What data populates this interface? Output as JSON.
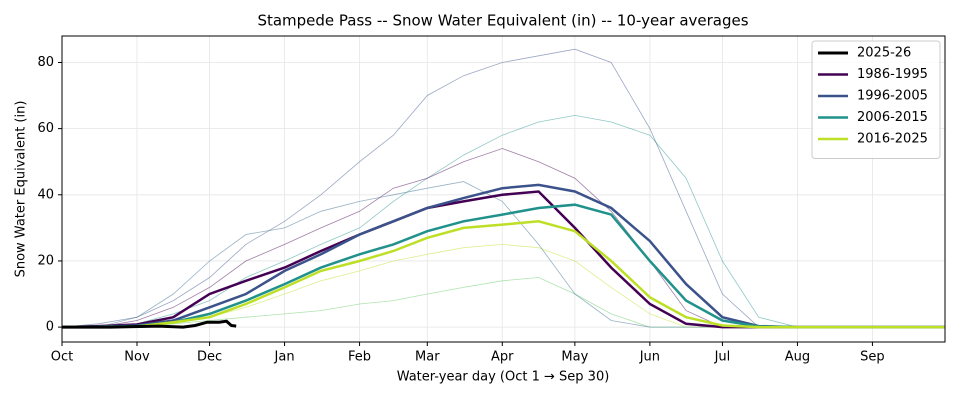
{
  "chart_data": {
    "type": "line",
    "title": "Stampede Pass -- Snow Water Equivalent (in) -- 10-year averages",
    "x_label": "Water-year day (Oct 1 → Sep 30)",
    "y_label": "Snow Water Equivalent (in)",
    "xlim": [
      0,
      365
    ],
    "ylim": [
      -4.5,
      88
    ],
    "xticks": [
      {
        "value": 0,
        "label": "Oct"
      },
      {
        "value": 31,
        "label": "Nov"
      },
      {
        "value": 61,
        "label": "Dec"
      },
      {
        "value": 92,
        "label": "Jan"
      },
      {
        "value": 123,
        "label": "Feb"
      },
      {
        "value": 151,
        "label": "Mar"
      },
      {
        "value": 182,
        "label": "Apr"
      },
      {
        "value": 212,
        "label": "May"
      },
      {
        "value": 243,
        "label": "Jun"
      },
      {
        "value": 273,
        "label": "Jul"
      },
      {
        "value": 304,
        "label": "Aug"
      },
      {
        "value": 335,
        "label": "Sep"
      }
    ],
    "yticks": [
      0,
      20,
      40,
      60,
      80
    ],
    "grid": true,
    "legend": "upper right",
    "x": [
      0,
      15,
      31,
      46,
      61,
      76,
      92,
      107,
      123,
      137,
      151,
      166,
      182,
      197,
      212,
      227,
      243,
      258,
      273,
      288,
      304,
      335,
      365
    ],
    "individual_years": [
      {
        "color": "#3b528b",
        "values": [
          0,
          1,
          3,
          8,
          15,
          25,
          32,
          40,
          50,
          58,
          70,
          76,
          80,
          82,
          84,
          80,
          60,
          35,
          10,
          0,
          0,
          0,
          0
        ]
      },
      {
        "color": "#21918c",
        "values": [
          0,
          0,
          1,
          4,
          8,
          15,
          20,
          25,
          30,
          38,
          45,
          52,
          58,
          62,
          64,
          62,
          58,
          45,
          20,
          3,
          0,
          0,
          0
        ]
      },
      {
        "color": "#5ec962",
        "values": [
          0,
          0,
          0,
          1,
          2,
          3,
          4,
          5,
          7,
          8,
          10,
          12,
          14,
          15,
          10,
          4,
          0,
          0,
          0,
          0,
          0,
          0,
          0
        ]
      },
      {
        "color": "#440154",
        "values": [
          0,
          0,
          2,
          6,
          12,
          20,
          25,
          30,
          35,
          42,
          45,
          50,
          54,
          50,
          45,
          35,
          20,
          5,
          0,
          0,
          0,
          0,
          0
        ]
      },
      {
        "color": "#bddf26",
        "values": [
          0,
          0,
          0,
          1,
          3,
          6,
          10,
          14,
          17,
          20,
          22,
          24,
          25,
          24,
          20,
          12,
          4,
          0,
          0,
          0,
          0,
          0,
          0
        ]
      },
      {
        "color": "#31688e",
        "values": [
          0,
          0,
          3,
          10,
          20,
          28,
          30,
          35,
          38,
          40,
          42,
          44,
          38,
          25,
          10,
          2,
          0,
          0,
          0,
          0,
          0,
          0,
          0
        ]
      }
    ],
    "series": [
      {
        "name": "2025-26",
        "color": "#000000",
        "x": [
          0,
          20,
          40,
          50,
          55,
          60,
          65,
          68,
          70,
          72
        ],
        "values": [
          0,
          0,
          0.3,
          0,
          0.5,
          1.5,
          1.5,
          1.8,
          0.5,
          0.3
        ]
      },
      {
        "name": "1986-1995",
        "color": "#440154",
        "values": [
          0,
          0.3,
          0.8,
          3,
          10,
          14,
          18,
          23,
          28,
          32,
          36,
          38,
          40,
          41,
          30,
          18,
          7,
          1,
          0,
          0,
          0,
          0,
          0
        ]
      },
      {
        "name": "1996-2005",
        "color": "#3b528b",
        "values": [
          0,
          0.2,
          0.5,
          2,
          6,
          10,
          17,
          22,
          28,
          32,
          36,
          39,
          42,
          43,
          41,
          36,
          26,
          13,
          3,
          0.3,
          0,
          0,
          0
        ]
      },
      {
        "name": "2006-2015",
        "color": "#21918c",
        "values": [
          0,
          0.1,
          0.3,
          1.5,
          4,
          8,
          13,
          18,
          22,
          25,
          29,
          32,
          34,
          36,
          37,
          34,
          20,
          8,
          2,
          0.2,
          0,
          0,
          0
        ]
      },
      {
        "name": "2016-2025",
        "color": "#bddf26",
        "values": [
          0,
          0,
          0.2,
          1.5,
          3,
          7,
          12,
          17,
          20,
          23,
          27,
          30,
          31,
          32,
          29,
          20,
          9,
          3,
          0.5,
          0,
          0,
          0,
          0
        ]
      }
    ]
  }
}
